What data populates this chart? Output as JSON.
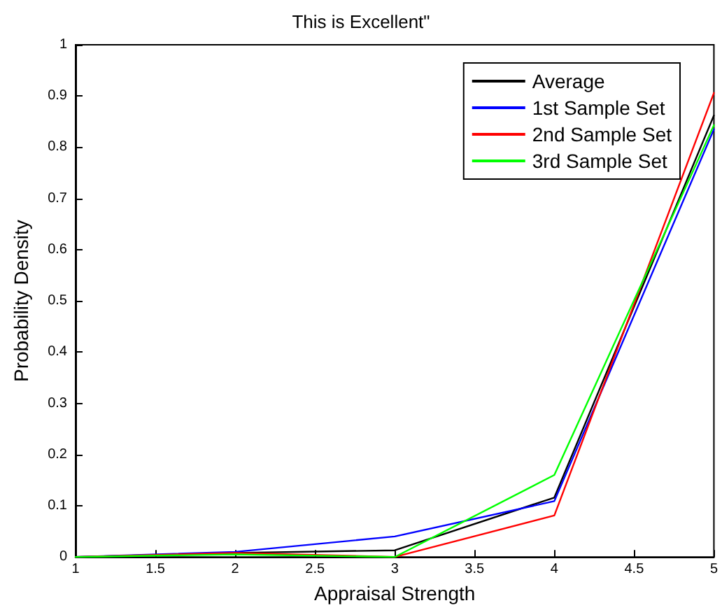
{
  "chart_data": {
    "type": "line",
    "title": "This is Excellent\"",
    "xlabel": "Appraisal Strength",
    "ylabel": "Probability Density",
    "x": [
      1,
      2,
      3,
      4,
      5
    ],
    "series": [
      {
        "name": "Average",
        "color": "#000000",
        "values": [
          0,
          0.008,
          0.013,
          0.116,
          0.862
        ]
      },
      {
        "name": "1st Sample Set",
        "color": "#0000ff",
        "values": [
          0,
          0.01,
          0.04,
          0.109,
          0.835
        ]
      },
      {
        "name": "2nd Sample Set",
        "color": "#ff0000",
        "values": [
          0,
          0.008,
          0,
          0.081,
          0.906
        ]
      },
      {
        "name": "3rd Sample Set",
        "color": "#00ff00",
        "values": [
          0,
          0.005,
          0,
          0.16,
          0.843
        ]
      }
    ],
    "xlim": [
      1,
      5
    ],
    "xticks": [
      1,
      1.5,
      2,
      2.5,
      3,
      3.5,
      4,
      4.5,
      5
    ],
    "ylim": [
      0,
      1
    ],
    "yticks": [
      0,
      0.1,
      0.2,
      0.3,
      0.4,
      0.5,
      0.6,
      0.7,
      0.8,
      0.9,
      1
    ],
    "grid": false,
    "legend": "top right",
    "marker": "none",
    "line_style": "solid"
  }
}
